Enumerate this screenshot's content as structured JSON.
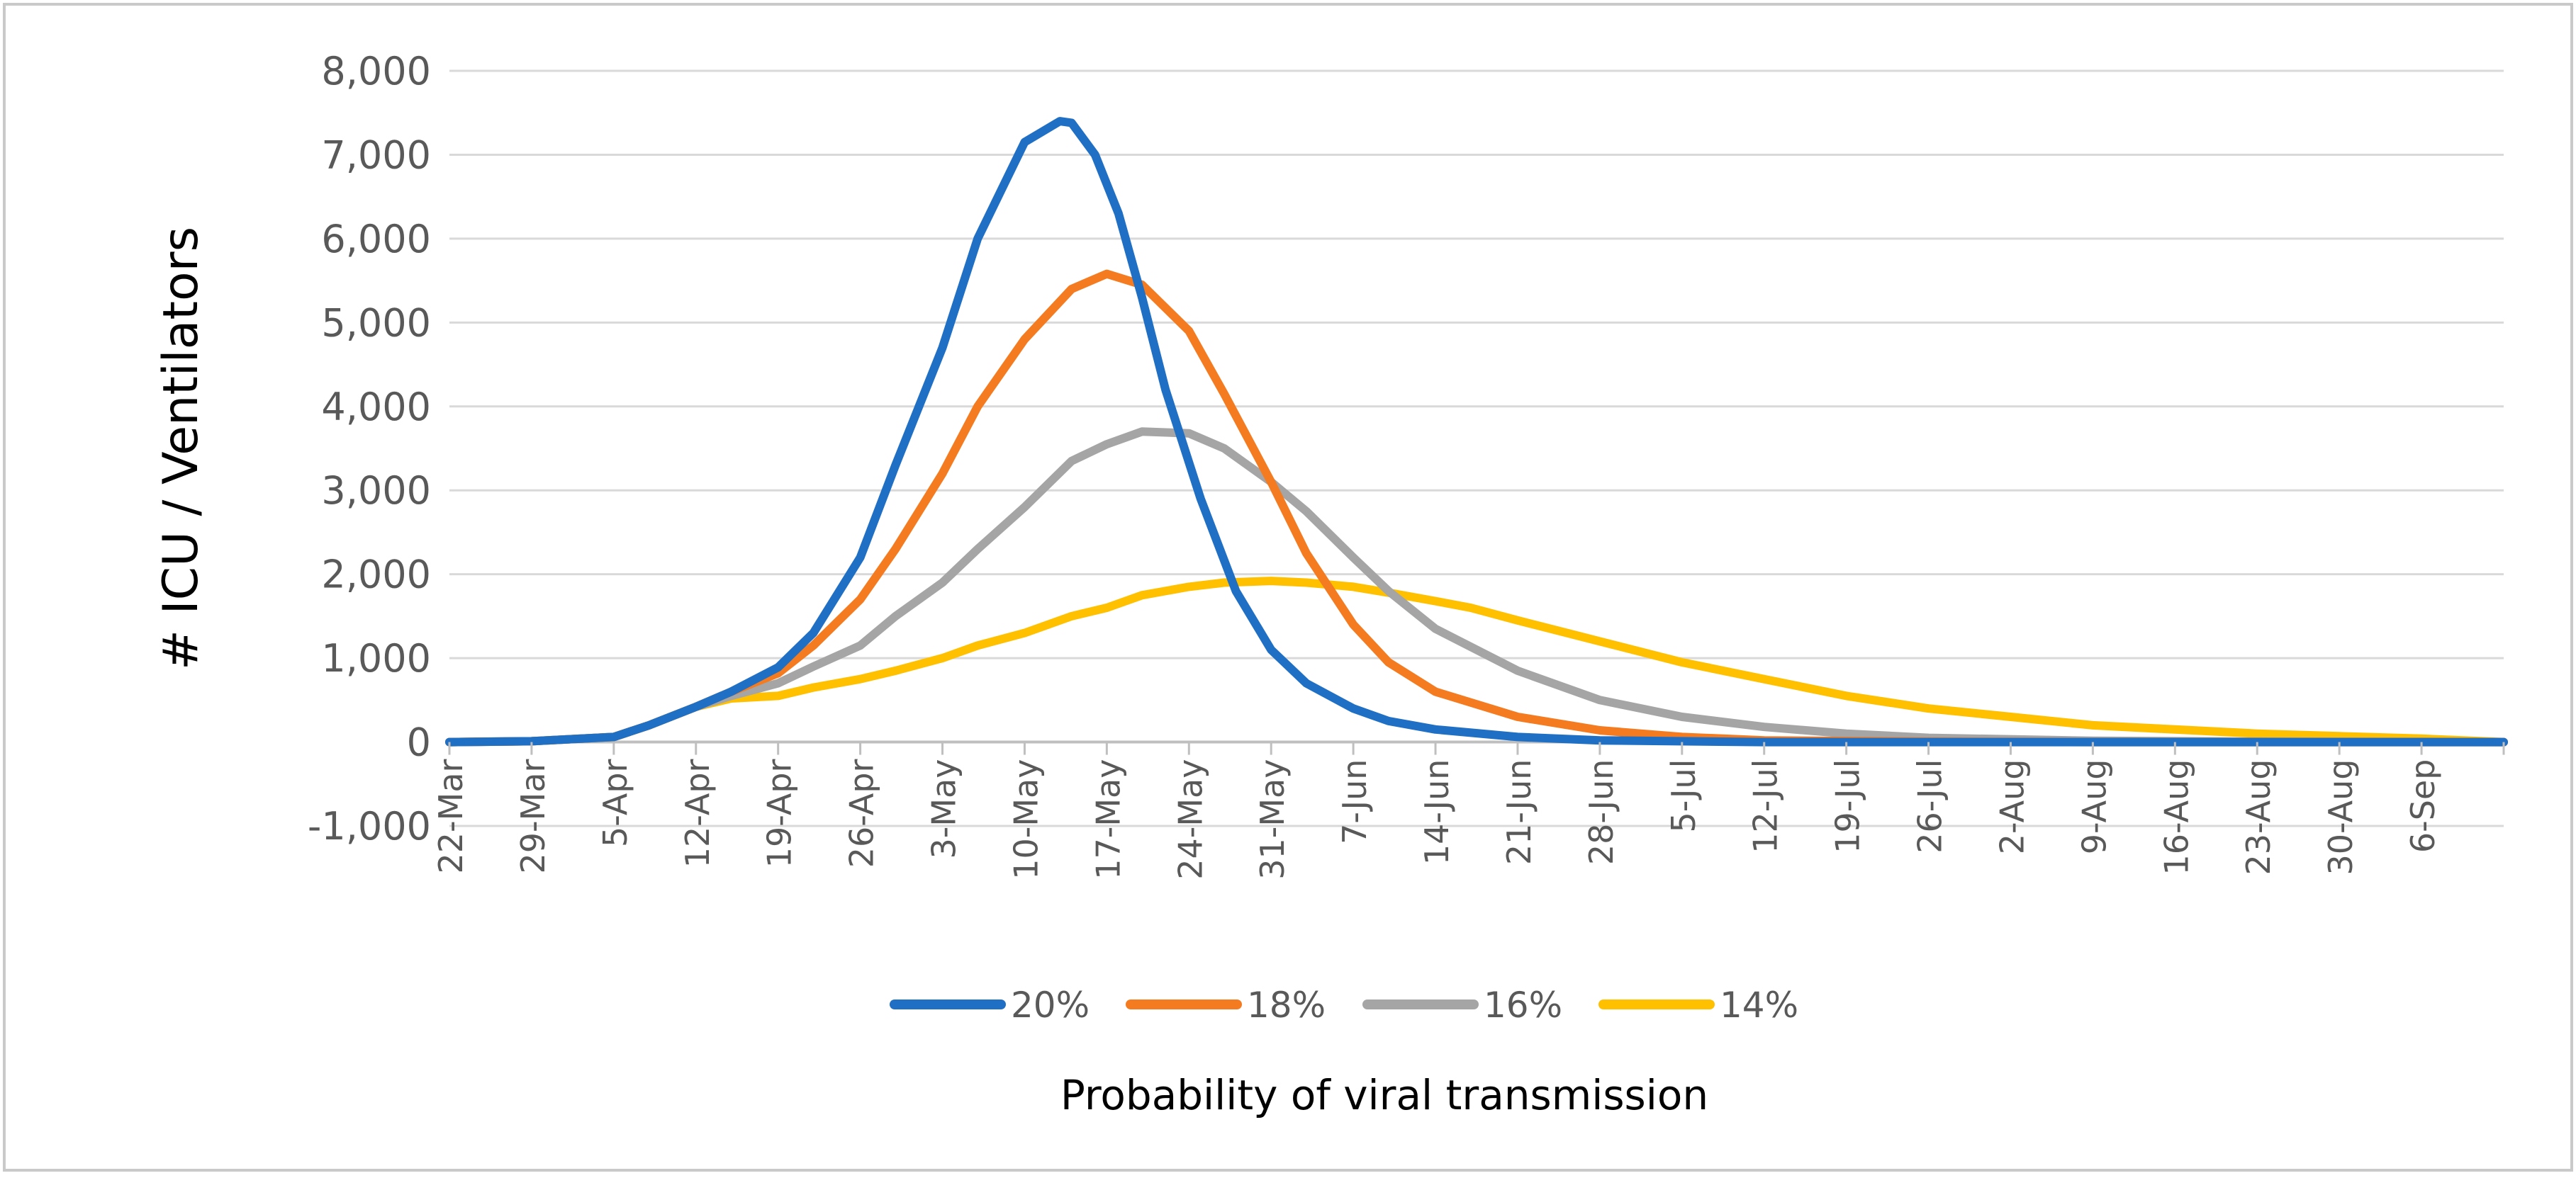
{
  "chart_data": {
    "type": "line",
    "title": "",
    "xlabel": "Probability of viral transmission",
    "ylabel": "# ICU / Ventilators",
    "ylim": [
      -1000,
      8000
    ],
    "yticks": [
      -1000,
      0,
      1000,
      2000,
      3000,
      4000,
      5000,
      6000,
      7000,
      8000
    ],
    "ytick_labels": [
      "-1,000",
      "0",
      "1,000",
      "2,000",
      "3,000",
      "4,000",
      "5,000",
      "6,000",
      "7,000",
      "8,000"
    ],
    "x_day_range": [
      0,
      175
    ],
    "xticks_day": [
      0,
      7,
      14,
      21,
      28,
      35,
      42,
      49,
      56,
      63,
      70,
      77,
      84,
      91,
      98,
      105,
      112,
      119,
      126,
      133,
      140,
      147,
      154,
      161,
      168
    ],
    "xtick_labels": [
      "22-Mar",
      "29-Mar",
      "5-Apr",
      "12-Apr",
      "19-Apr",
      "26-Apr",
      "3-May",
      "10-May",
      "17-May",
      "24-May",
      "31-May",
      "7-Jun",
      "14-Jun",
      "21-Jun",
      "28-Jun",
      "5-Jul",
      "12-Jul",
      "19-Jul",
      "26-Jul",
      "2-Aug",
      "9-Aug",
      "16-Aug",
      "23-Aug",
      "30-Aug",
      "6-Sep"
    ],
    "grid": true,
    "legend_position": "bottom",
    "series": [
      {
        "name": "20%",
        "color": "#1f6fc5",
        "x": [
          0,
          7,
          14,
          17,
          21,
          24,
          28,
          31,
          35,
          38,
          42,
          45,
          49,
          52,
          53,
          55,
          57,
          59,
          61,
          64,
          67,
          70,
          73,
          77,
          80,
          84,
          91,
          98,
          112,
          126,
          140,
          175
        ],
        "y": [
          0,
          10,
          60,
          200,
          420,
          600,
          890,
          1300,
          2200,
          3300,
          4700,
          6000,
          7150,
          7400,
          7380,
          7000,
          6300,
          5300,
          4200,
          2900,
          1800,
          1100,
          700,
          400,
          250,
          150,
          60,
          20,
          0,
          0,
          0,
          0
        ]
      },
      {
        "name": "18%",
        "color": "#f47b20",
        "x": [
          0,
          7,
          14,
          17,
          21,
          24,
          28,
          31,
          35,
          38,
          42,
          45,
          49,
          53,
          56,
          59,
          63,
          66,
          70,
          73,
          77,
          80,
          84,
          91,
          98,
          105,
          112,
          126,
          140,
          175
        ],
        "y": [
          0,
          10,
          60,
          200,
          420,
          600,
          820,
          1150,
          1700,
          2300,
          3200,
          4000,
          4800,
          5400,
          5580,
          5450,
          4900,
          4150,
          3100,
          2250,
          1400,
          950,
          600,
          300,
          140,
          60,
          20,
          5,
          0,
          0
        ]
      },
      {
        "name": "16%",
        "color": "#a5a5a5",
        "x": [
          0,
          7,
          14,
          17,
          21,
          24,
          28,
          31,
          35,
          38,
          42,
          45,
          49,
          53,
          56,
          59,
          63,
          66,
          70,
          73,
          77,
          80,
          84,
          91,
          98,
          105,
          112,
          119,
          126,
          140,
          154,
          175
        ],
        "y": [
          0,
          10,
          60,
          200,
          420,
          550,
          700,
          900,
          1150,
          1500,
          1900,
          2300,
          2800,
          3350,
          3550,
          3700,
          3680,
          3500,
          3100,
          2750,
          2200,
          1800,
          1350,
          850,
          500,
          300,
          180,
          100,
          50,
          15,
          5,
          0
        ]
      },
      {
        "name": "14%",
        "color": "#ffc000",
        "x": [
          0,
          7,
          14,
          17,
          21,
          24,
          28,
          31,
          35,
          38,
          42,
          45,
          49,
          53,
          56,
          59,
          63,
          66,
          70,
          73,
          77,
          80,
          84,
          87,
          91,
          98,
          105,
          112,
          119,
          126,
          133,
          140,
          147,
          154,
          161,
          168,
          175
        ],
        "y": [
          0,
          10,
          60,
          200,
          420,
          520,
          550,
          650,
          750,
          850,
          1000,
          1150,
          1300,
          1500,
          1600,
          1750,
          1850,
          1900,
          1920,
          1900,
          1850,
          1780,
          1680,
          1600,
          1450,
          1200,
          950,
          750,
          550,
          400,
          300,
          200,
          150,
          100,
          70,
          40,
          0
        ]
      }
    ]
  }
}
